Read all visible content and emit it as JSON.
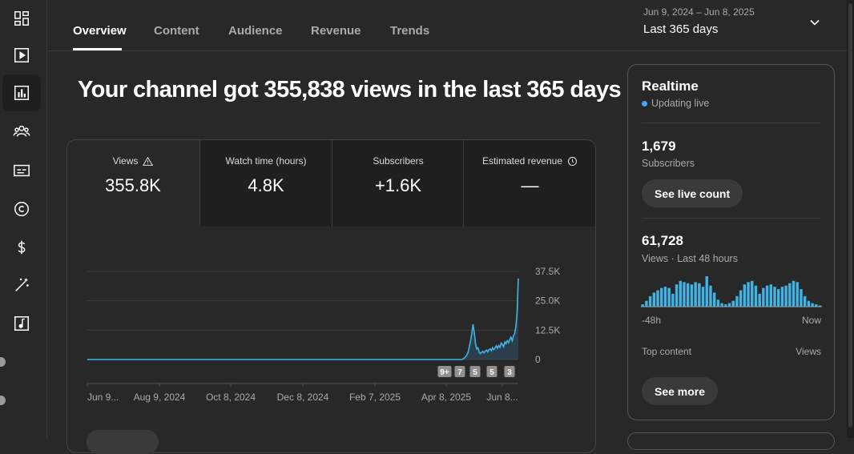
{
  "tabs": [
    "Overview",
    "Content",
    "Audience",
    "Revenue",
    "Trends"
  ],
  "date": {
    "range": "Jun 9, 2024 – Jun 8, 2025",
    "period": "Last 365 days"
  },
  "headline": "Your channel got 355,838 views in the last 365 days",
  "metrics": [
    {
      "label": "Views",
      "value": "355.8K",
      "icon": "warning-icon"
    },
    {
      "label": "Watch time (hours)",
      "value": "4.8K"
    },
    {
      "label": "Subscribers",
      "value": "+1.6K"
    },
    {
      "label": "Estimated revenue",
      "value": "—",
      "icon": "clock-icon"
    }
  ],
  "chart_data": {
    "type": "area",
    "x_ticks": [
      "Jun 9...",
      "Aug 9, 2024",
      "Oct 8, 2024",
      "Dec 8, 2024",
      "Feb 7, 2025",
      "Apr 8, 2025",
      "Jun 8..."
    ],
    "y_ticks": [
      "37.5K",
      "25.0K",
      "12.5K",
      "0"
    ],
    "ylim": [
      0,
      37500
    ],
    "grid": true,
    "badges": [
      "9+",
      "7",
      "5",
      "5",
      "3"
    ],
    "values": [
      0,
      0,
      0,
      0,
      0,
      0,
      0,
      0,
      0,
      0,
      0,
      0,
      0,
      0,
      0,
      0,
      0,
      0,
      0,
      0,
      0,
      0,
      0,
      0,
      0,
      0,
      0,
      0,
      0,
      0,
      0,
      0,
      0,
      0,
      0,
      0,
      0,
      0,
      0,
      0,
      0,
      0,
      0,
      0,
      0,
      0,
      0,
      0,
      0,
      0,
      0,
      0,
      0,
      0,
      0,
      0,
      0,
      0,
      0,
      0,
      0,
      0,
      0,
      0,
      0,
      0,
      0,
      0,
      0,
      0,
      0,
      0,
      0,
      0,
      0,
      0,
      0,
      0,
      0,
      0,
      0,
      0,
      0,
      0,
      0,
      0,
      0,
      0,
      0,
      0,
      0,
      0,
      0,
      0,
      0,
      0,
      0,
      0,
      0,
      0,
      0,
      0,
      0,
      0,
      0,
      0,
      0,
      0,
      0,
      0,
      0,
      0,
      0,
      0,
      0,
      0,
      0,
      0,
      0,
      0,
      0,
      0,
      0,
      0,
      0,
      0,
      0,
      0,
      0,
      0,
      0,
      0,
      0,
      0,
      0,
      0,
      0,
      0,
      0,
      0,
      0,
      0,
      0,
      0,
      0,
      0,
      0,
      0,
      0,
      0,
      0,
      0,
      0,
      0,
      0,
      0,
      0,
      0,
      0,
      0,
      0,
      0,
      0,
      0,
      0,
      0,
      0,
      0,
      0,
      0,
      0,
      0,
      0,
      0,
      0,
      0,
      0,
      0,
      0,
      0,
      0,
      0,
      0,
      0,
      0,
      0,
      0,
      0,
      0,
      0,
      0,
      0,
      0,
      0,
      0,
      0,
      0,
      0,
      0,
      0,
      0,
      0,
      0,
      0,
      0,
      0,
      0,
      0,
      0,
      0,
      0,
      0,
      0,
      0,
      0,
      0,
      0,
      0,
      0,
      0,
      0,
      0,
      0,
      0,
      0,
      0,
      0,
      0,
      0,
      0,
      0,
      0,
      0,
      0,
      0,
      0,
      0,
      0,
      0,
      0,
      0,
      0,
      0,
      0,
      0,
      0,
      0,
      0,
      0,
      0,
      0,
      0,
      0,
      0,
      0,
      0,
      0,
      0,
      0,
      0,
      0,
      0,
      0,
      0,
      0,
      0,
      0,
      0,
      0,
      0,
      0,
      0,
      0,
      0,
      0,
      0,
      0,
      0,
      0,
      0,
      0,
      0,
      0,
      0,
      0,
      0,
      0,
      0,
      0,
      0,
      0,
      0,
      0,
      0,
      0,
      0,
      0,
      0,
      0,
      0,
      0,
      0,
      0,
      0,
      0,
      0,
      0,
      300,
      700,
      1200,
      2000,
      3000,
      5500,
      8000,
      11000,
      15000,
      11500,
      7000,
      4500,
      5000,
      3200,
      2500,
      3000,
      3500,
      2800,
      3500,
      4000,
      3200,
      4200,
      4500,
      3800,
      5000,
      4200,
      5000,
      5800,
      4800,
      6000,
      5200,
      7000,
      6500,
      5500,
      7500,
      6800,
      8000,
      7200,
      8500,
      9500,
      8000,
      10000,
      11000,
      14000,
      20000,
      34500
    ]
  },
  "realtime": {
    "title": "Realtime",
    "status": "Updating live",
    "subs_value": "1,679",
    "subs_label": "Subscribers",
    "live_button": "See live count",
    "views_value": "61,728",
    "views_label": "Views · Last 48 hours",
    "axis_start": "-48h",
    "axis_end": "Now",
    "top_content": "Top content",
    "views_col": "Views",
    "see_more": "See more",
    "bars": [
      2,
      5,
      9,
      12,
      14,
      16,
      17,
      16,
      11,
      19,
      22,
      21,
      20,
      19,
      21,
      20,
      17,
      26,
      18,
      12,
      6,
      3,
      2,
      3,
      5,
      9,
      14,
      19,
      21,
      22,
      18,
      11,
      16,
      18,
      19,
      17,
      15,
      17,
      18,
      20,
      22,
      21,
      15,
      9,
      5,
      3,
      2,
      1
    ]
  }
}
